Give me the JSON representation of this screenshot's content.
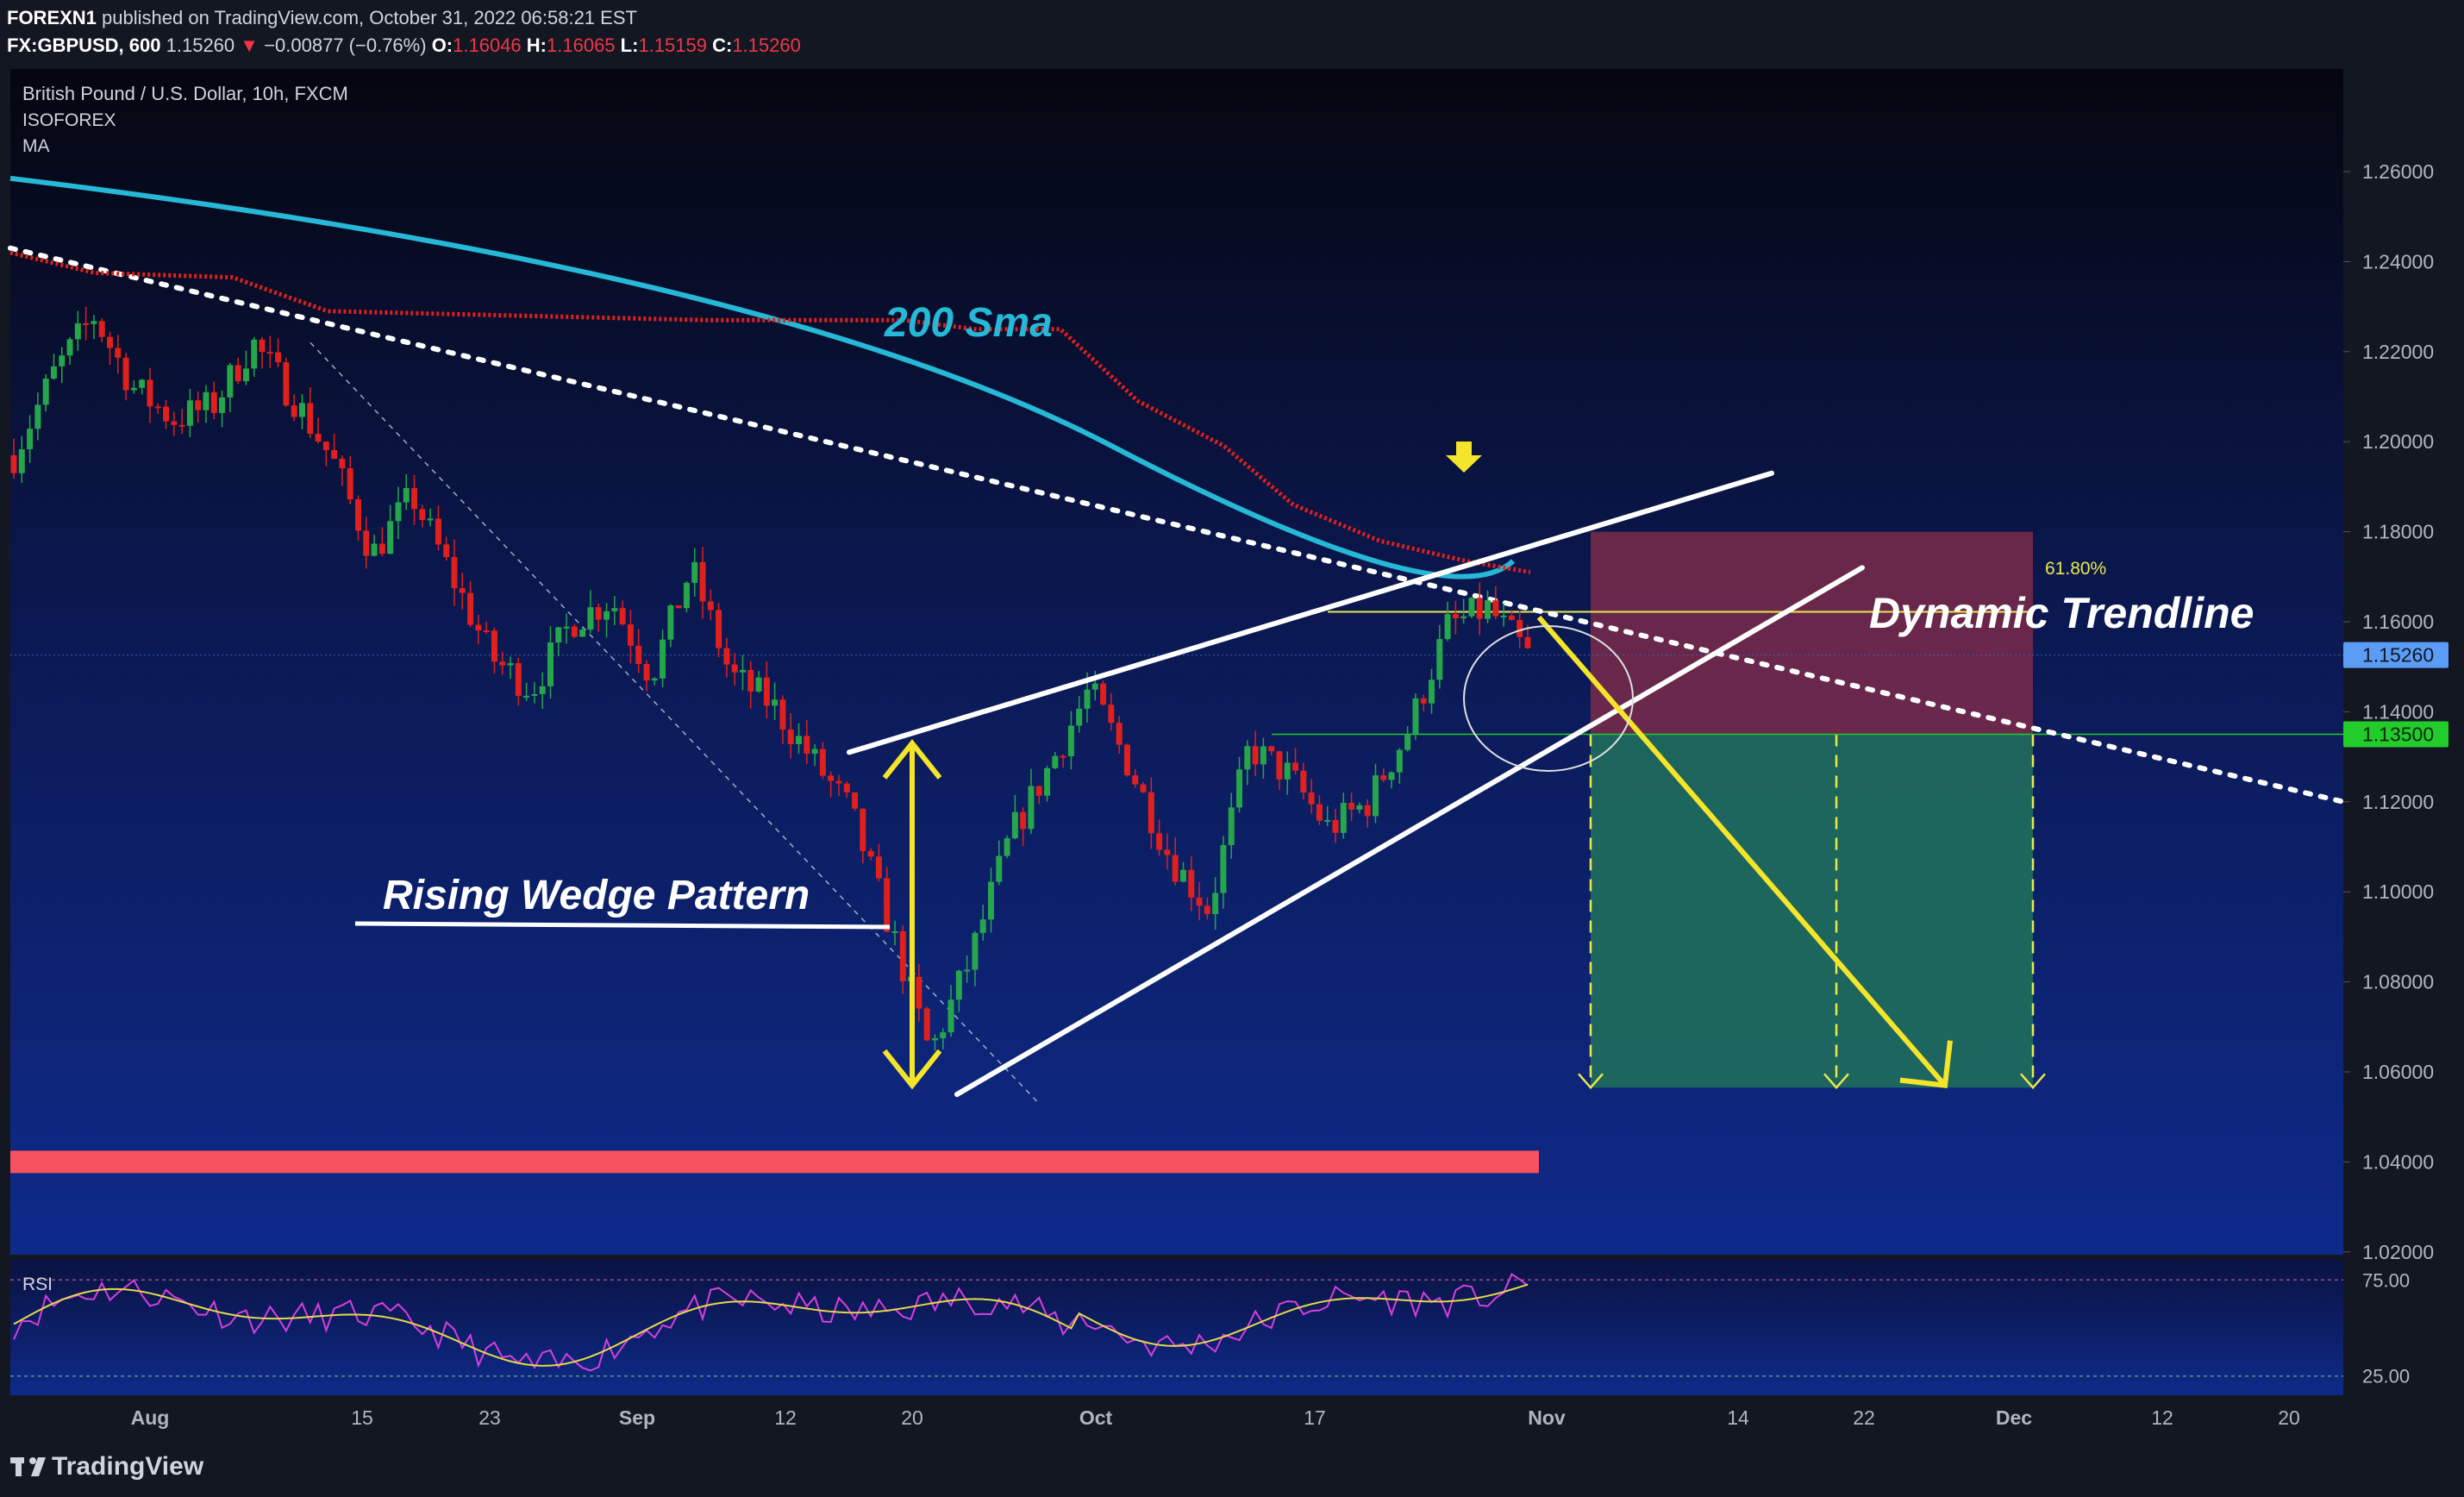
{
  "header": {
    "publisher": "FOREXN1",
    "published_text": "published on TradingView.com, October 31, 2022 06:58:21 EST",
    "symbol": "FX:GBPUSD, 600",
    "last": "1.15260",
    "change": "−0.00877 (−0.76%)",
    "o_label": "O:",
    "o_value": "1.16046",
    "h_label": "H:",
    "h_value": "1.16065",
    "l_label": "L:",
    "l_value": "1.15159",
    "c_label": "C:",
    "c_value": "1.15260"
  },
  "chart_data": {
    "type": "candlestick",
    "title": "British Pound / U.S. Dollar, 10h, FXCM",
    "indicator_labels": [
      "ISOFOREX",
      "MA"
    ],
    "x_ticks": [
      "Aug",
      "15",
      "23",
      "Sep",
      "12",
      "20",
      "Oct",
      "17",
      "Nov",
      "14",
      "22",
      "Dec",
      "12",
      "20"
    ],
    "y_ticks": [
      "1.26000",
      "1.24000",
      "1.22000",
      "1.20000",
      "1.18000",
      "1.16000",
      "1.14000",
      "1.12000",
      "1.10000",
      "1.08000",
      "1.06000",
      "1.04000",
      "1.02000"
    ],
    "ylim": [
      1.005,
      1.275
    ],
    "price_path": [
      1.197,
      1.215,
      1.228,
      1.212,
      1.205,
      1.208,
      1.222,
      1.21,
      1.196,
      1.175,
      1.188,
      1.17,
      1.152,
      1.145,
      1.16,
      1.165,
      1.148,
      1.172,
      1.148,
      1.142,
      1.13,
      1.118,
      1.092,
      1.064,
      1.085,
      1.112,
      1.128,
      1.145,
      1.128,
      1.108,
      1.096,
      1.132,
      1.126,
      1.114,
      1.12,
      1.136,
      1.159,
      1.163,
      1.1526
    ],
    "current_price": {
      "label": "1.15260",
      "value": 1.1526,
      "color": "#5b9cf6"
    },
    "target_level": {
      "label": "1.13500",
      "value": 1.135,
      "color": "#22cc2b"
    },
    "fib_level": {
      "label": "61.80%",
      "value": 1.1622,
      "color": "#e9e94a"
    },
    "sma200": {
      "label": "200 Sma",
      "color": "#26b8d6",
      "start": 1.2585,
      "mid": 1.215,
      "end": 1.1735
    },
    "isoforex_ma": {
      "color": "#e0201c",
      "levels": [
        1.242,
        1.228,
        1.227,
        1.225,
        1.171
      ]
    },
    "dynamic_trendline": {
      "label": "Dynamic Trendline",
      "start": 1.243,
      "end": 1.12
    },
    "wedge": {
      "label": "Rising Wedge Pattern",
      "upper": [
        1.131,
        1.193
      ],
      "lower": [
        1.055,
        1.172
      ]
    },
    "support_zone": {
      "value": 1.04,
      "color": "#f7525f"
    },
    "position": {
      "entry": 1.135,
      "stop": 1.18,
      "target": 1.0565,
      "stop_color": "#7a2a4a",
      "target_color": "#1f6e5c"
    },
    "rsi": {
      "label": "RSI",
      "ticks": [
        "75.00",
        "25.00"
      ],
      "ylim": [
        15,
        85
      ],
      "upper": 75,
      "lower": 25,
      "line_color": "#d63fde",
      "signal_color": "#e6d84a"
    }
  },
  "footer": {
    "brand": "TradingView"
  }
}
